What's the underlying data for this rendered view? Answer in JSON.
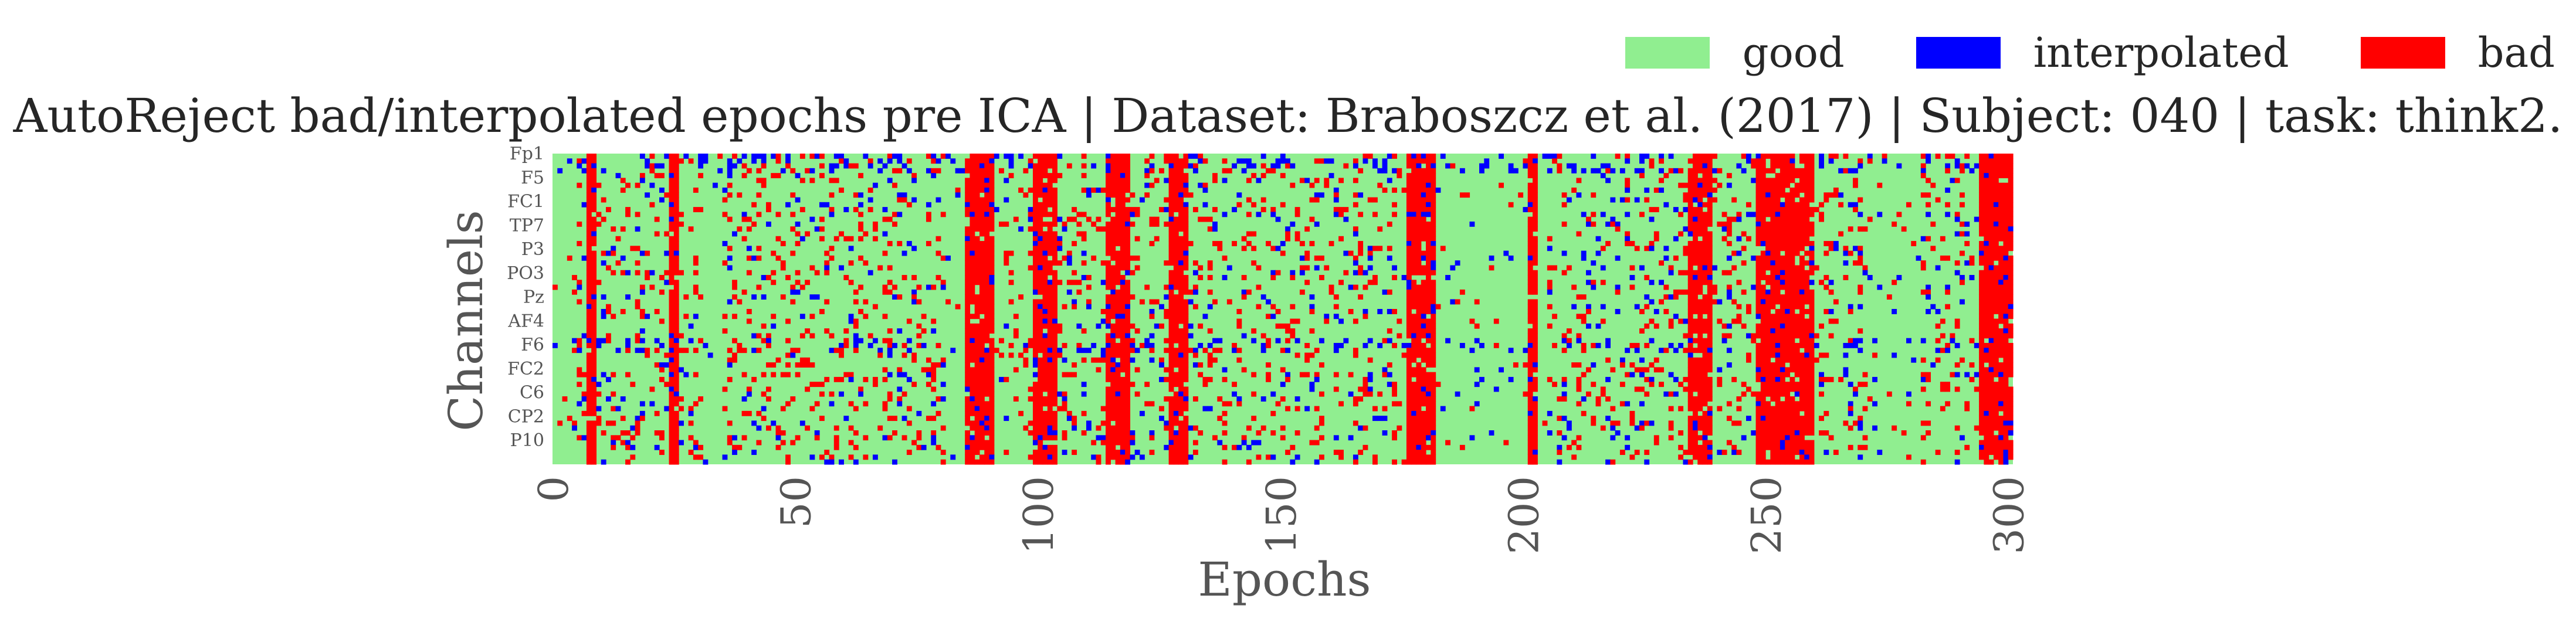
{
  "chart_data": {
    "type": "heatmap",
    "title": "AutoReject bad/interpolated epochs pre ICA | Dataset: Braboszcz et al. (2017) | Subject: 040 | task: think2.",
    "xlabel": "Epochs",
    "ylabel": "Channels",
    "x_ticks": [
      0,
      50,
      100,
      150,
      200,
      250,
      300
    ],
    "xlim": [
      0,
      301
    ],
    "n_epochs": 301,
    "n_channels": 64,
    "y_tick_labels": [
      "Fp1",
      "F5",
      "FC1",
      "TP7",
      "P3",
      "PO3",
      "Pz",
      "AF4",
      "F6",
      "FC2",
      "C6",
      "CP2",
      "P10"
    ],
    "categories": [
      "good",
      "interpolated",
      "bad"
    ],
    "legend": {
      "placement": "top-right",
      "items": [
        {
          "label": "good",
          "color": "#90EE90"
        },
        {
          "label": "interpolated",
          "color": "#0000FF"
        },
        {
          "label": "bad",
          "color": "#FF0000"
        }
      ]
    },
    "bad_epochs": [
      7,
      8,
      24,
      25,
      85,
      86,
      87,
      88,
      89,
      90,
      99,
      100,
      101,
      102,
      103,
      114,
      115,
      116,
      117,
      118,
      127,
      128,
      129,
      130,
      176,
      177,
      178,
      179,
      180,
      181,
      201,
      202,
      234,
      235,
      236,
      237,
      238,
      248,
      249,
      250,
      251,
      252,
      253,
      254,
      255,
      256,
      257,
      258,
      259,
      294,
      295,
      296,
      297,
      298,
      299,
      300
    ],
    "interpolated_channel_rows": [
      0,
      1,
      2,
      3,
      38,
      39,
      40
    ],
    "grid": false
  }
}
